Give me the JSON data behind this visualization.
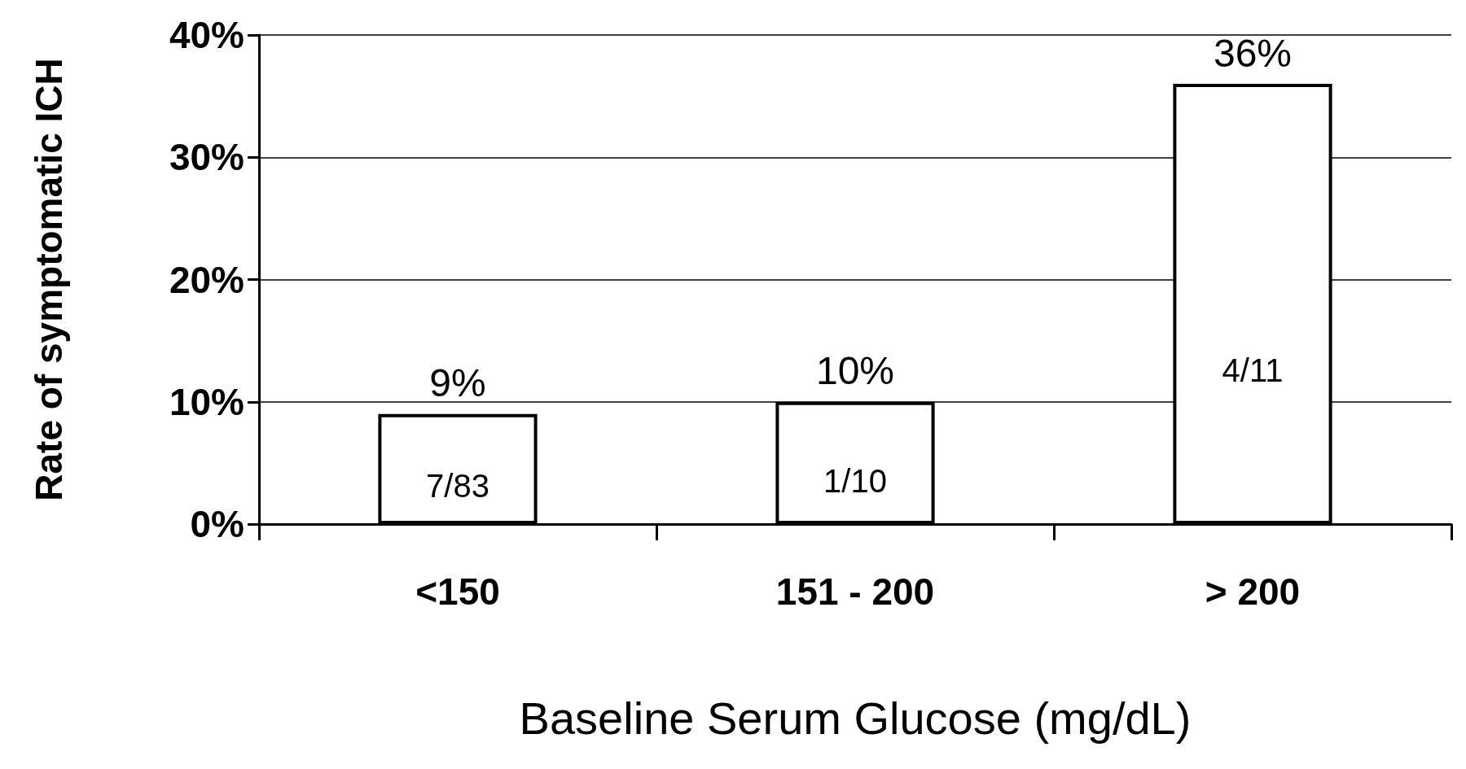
{
  "chart_data": {
    "type": "bar",
    "xlabel": "Baseline Serum Glucose (mg/dL)",
    "ylabel": "Rate of symptomatic ICH",
    "categories": [
      "<150",
      "151 - 200",
      "> 200"
    ],
    "values": [
      9,
      10,
      36
    ],
    "value_labels": [
      "9%",
      "10%",
      "36%"
    ],
    "color": "#ffffff",
    "ylim": [
      0,
      40
    ],
    "yticks": [
      {
        "value": 0,
        "label": "0%"
      },
      {
        "value": 10,
        "label": "10%"
      },
      {
        "value": 20,
        "label": "20%"
      },
      {
        "value": 30,
        "label": "30%"
      },
      {
        "value": 40,
        "label": "40%"
      }
    ],
    "grid": "y",
    "annotations": [
      "7/83",
      "1/10",
      "4/11"
    ]
  }
}
